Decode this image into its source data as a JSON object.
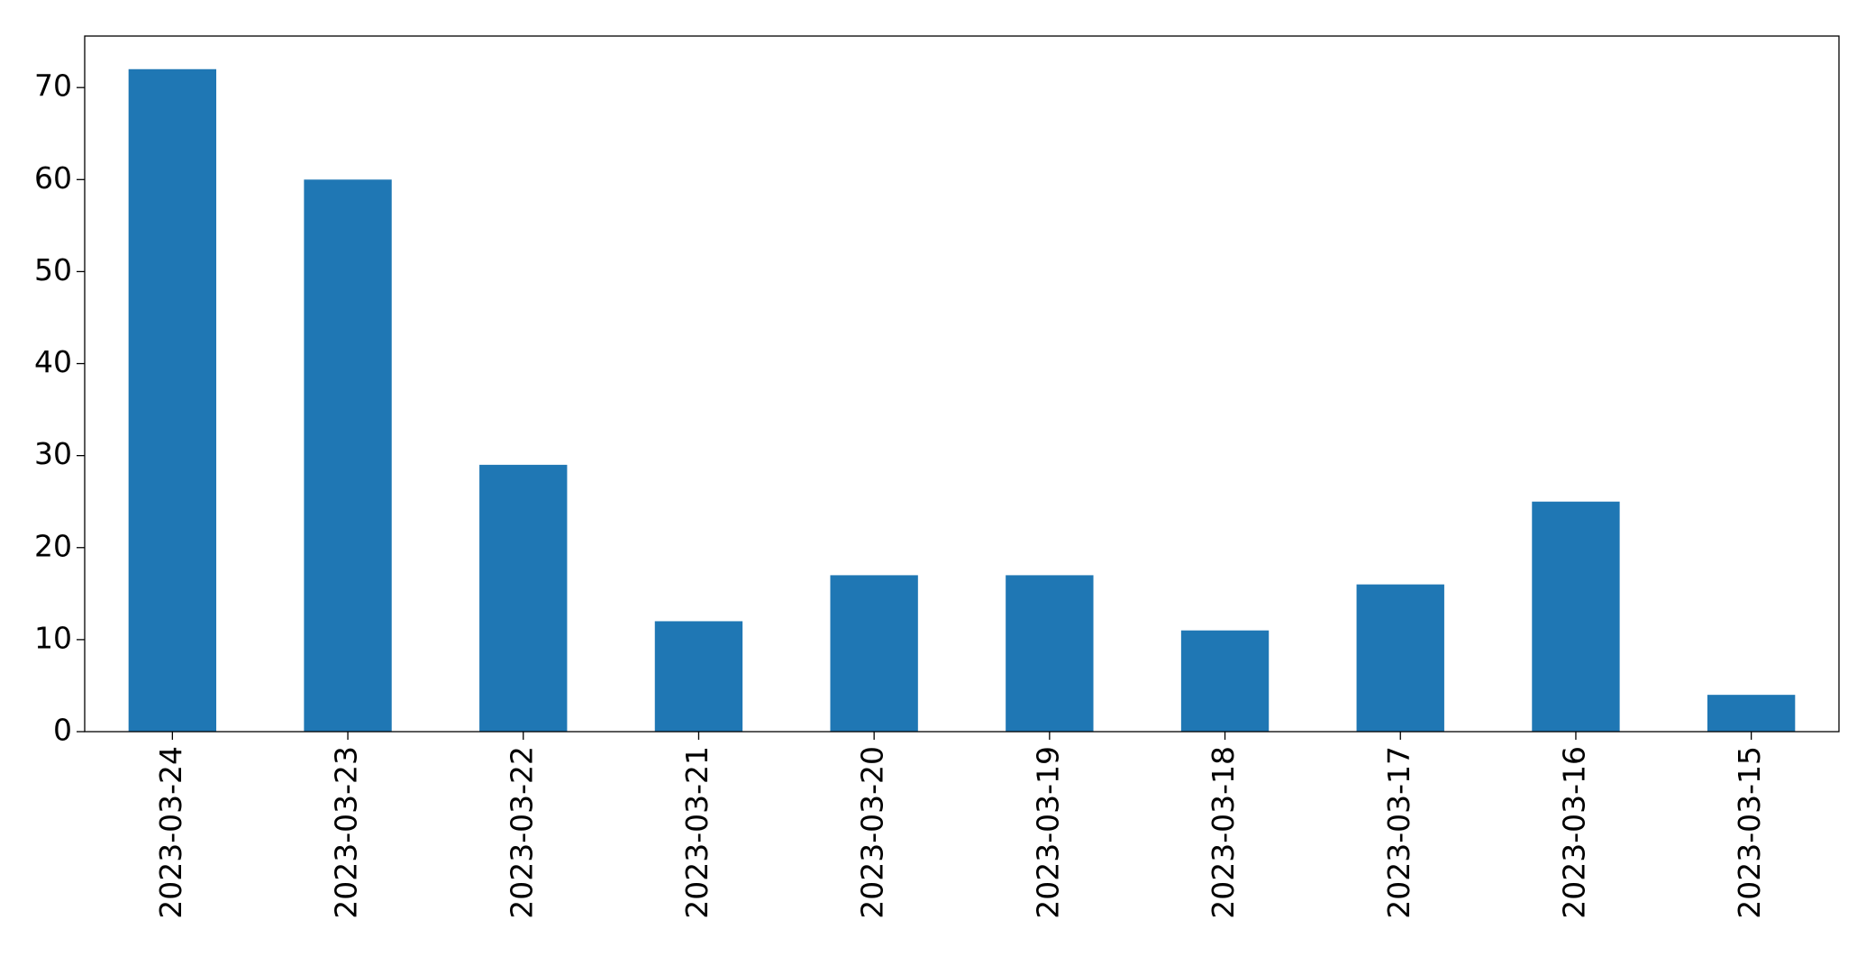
{
  "chart_data": {
    "type": "bar",
    "categories": [
      "2023-03-24",
      "2023-03-23",
      "2023-03-22",
      "2023-03-21",
      "2023-03-20",
      "2023-03-19",
      "2023-03-18",
      "2023-03-17",
      "2023-03-16",
      "2023-03-15"
    ],
    "values": [
      72,
      60,
      29,
      12,
      17,
      17,
      11,
      16,
      25,
      4
    ],
    "color": "#1f77b4",
    "ylim": [
      0,
      75.6
    ],
    "yticks": [
      0,
      10,
      20,
      30,
      40,
      50,
      60,
      70
    ],
    "grid": false
  }
}
